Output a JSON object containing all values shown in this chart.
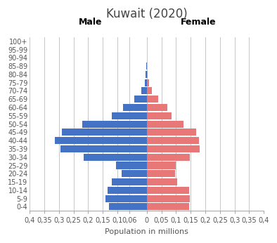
{
  "title": "Kuwait (2020)",
  "xlabel": "Population in millions",
  "male_label": "Male",
  "female_label": "Female",
  "age_groups": [
    "0-4",
    "5-9",
    "10-14",
    "15-19",
    "20-24",
    "25-29",
    "30-34",
    "35-39",
    "40-44",
    "45-49",
    "50-54",
    "55-59",
    "60-64",
    "65-69",
    "70-74",
    "75-79",
    "80-84",
    "85-89",
    "90-94",
    "95-99",
    "100+"
  ],
  "male": [
    0.13,
    0.14,
    0.135,
    0.12,
    0.085,
    0.105,
    0.215,
    0.295,
    0.315,
    0.29,
    0.22,
    0.12,
    0.08,
    0.042,
    0.018,
    0.007,
    0.003,
    0.001,
    0.0003,
    0.0001,
    5e-05
  ],
  "female": [
    0.145,
    0.148,
    0.145,
    0.105,
    0.097,
    0.1,
    0.148,
    0.182,
    0.178,
    0.168,
    0.125,
    0.085,
    0.07,
    0.038,
    0.018,
    0.007,
    0.003,
    0.001,
    0.0003,
    0.0001,
    5e-05
  ],
  "male_color": "#4472C4",
  "female_color": "#E87878",
  "bar_height": 0.85,
  "xlim": 0.4,
  "xtick_positions": [
    -0.4,
    -0.35,
    -0.3,
    -0.25,
    -0.2,
    -0.15,
    -0.1,
    -0.06,
    0,
    0.05,
    0.1,
    0.15,
    0.2,
    0.25,
    0.3,
    0.35,
    0.4
  ],
  "xtick_labels": [
    "0,4",
    "0,35",
    "0,3",
    "0,25",
    "0,2",
    "0,15",
    "0,1",
    "0,06",
    "0",
    "0,05",
    "0,1",
    "0,15",
    "0,2",
    "0,25",
    "0,3",
    "0,35",
    "0,4"
  ],
  "background_color": "#FFFFFF",
  "grid_color": "#C8C8C8",
  "title_fontsize": 12,
  "male_female_fontsize": 9,
  "axis_fontsize": 7,
  "xlabel_fontsize": 8
}
